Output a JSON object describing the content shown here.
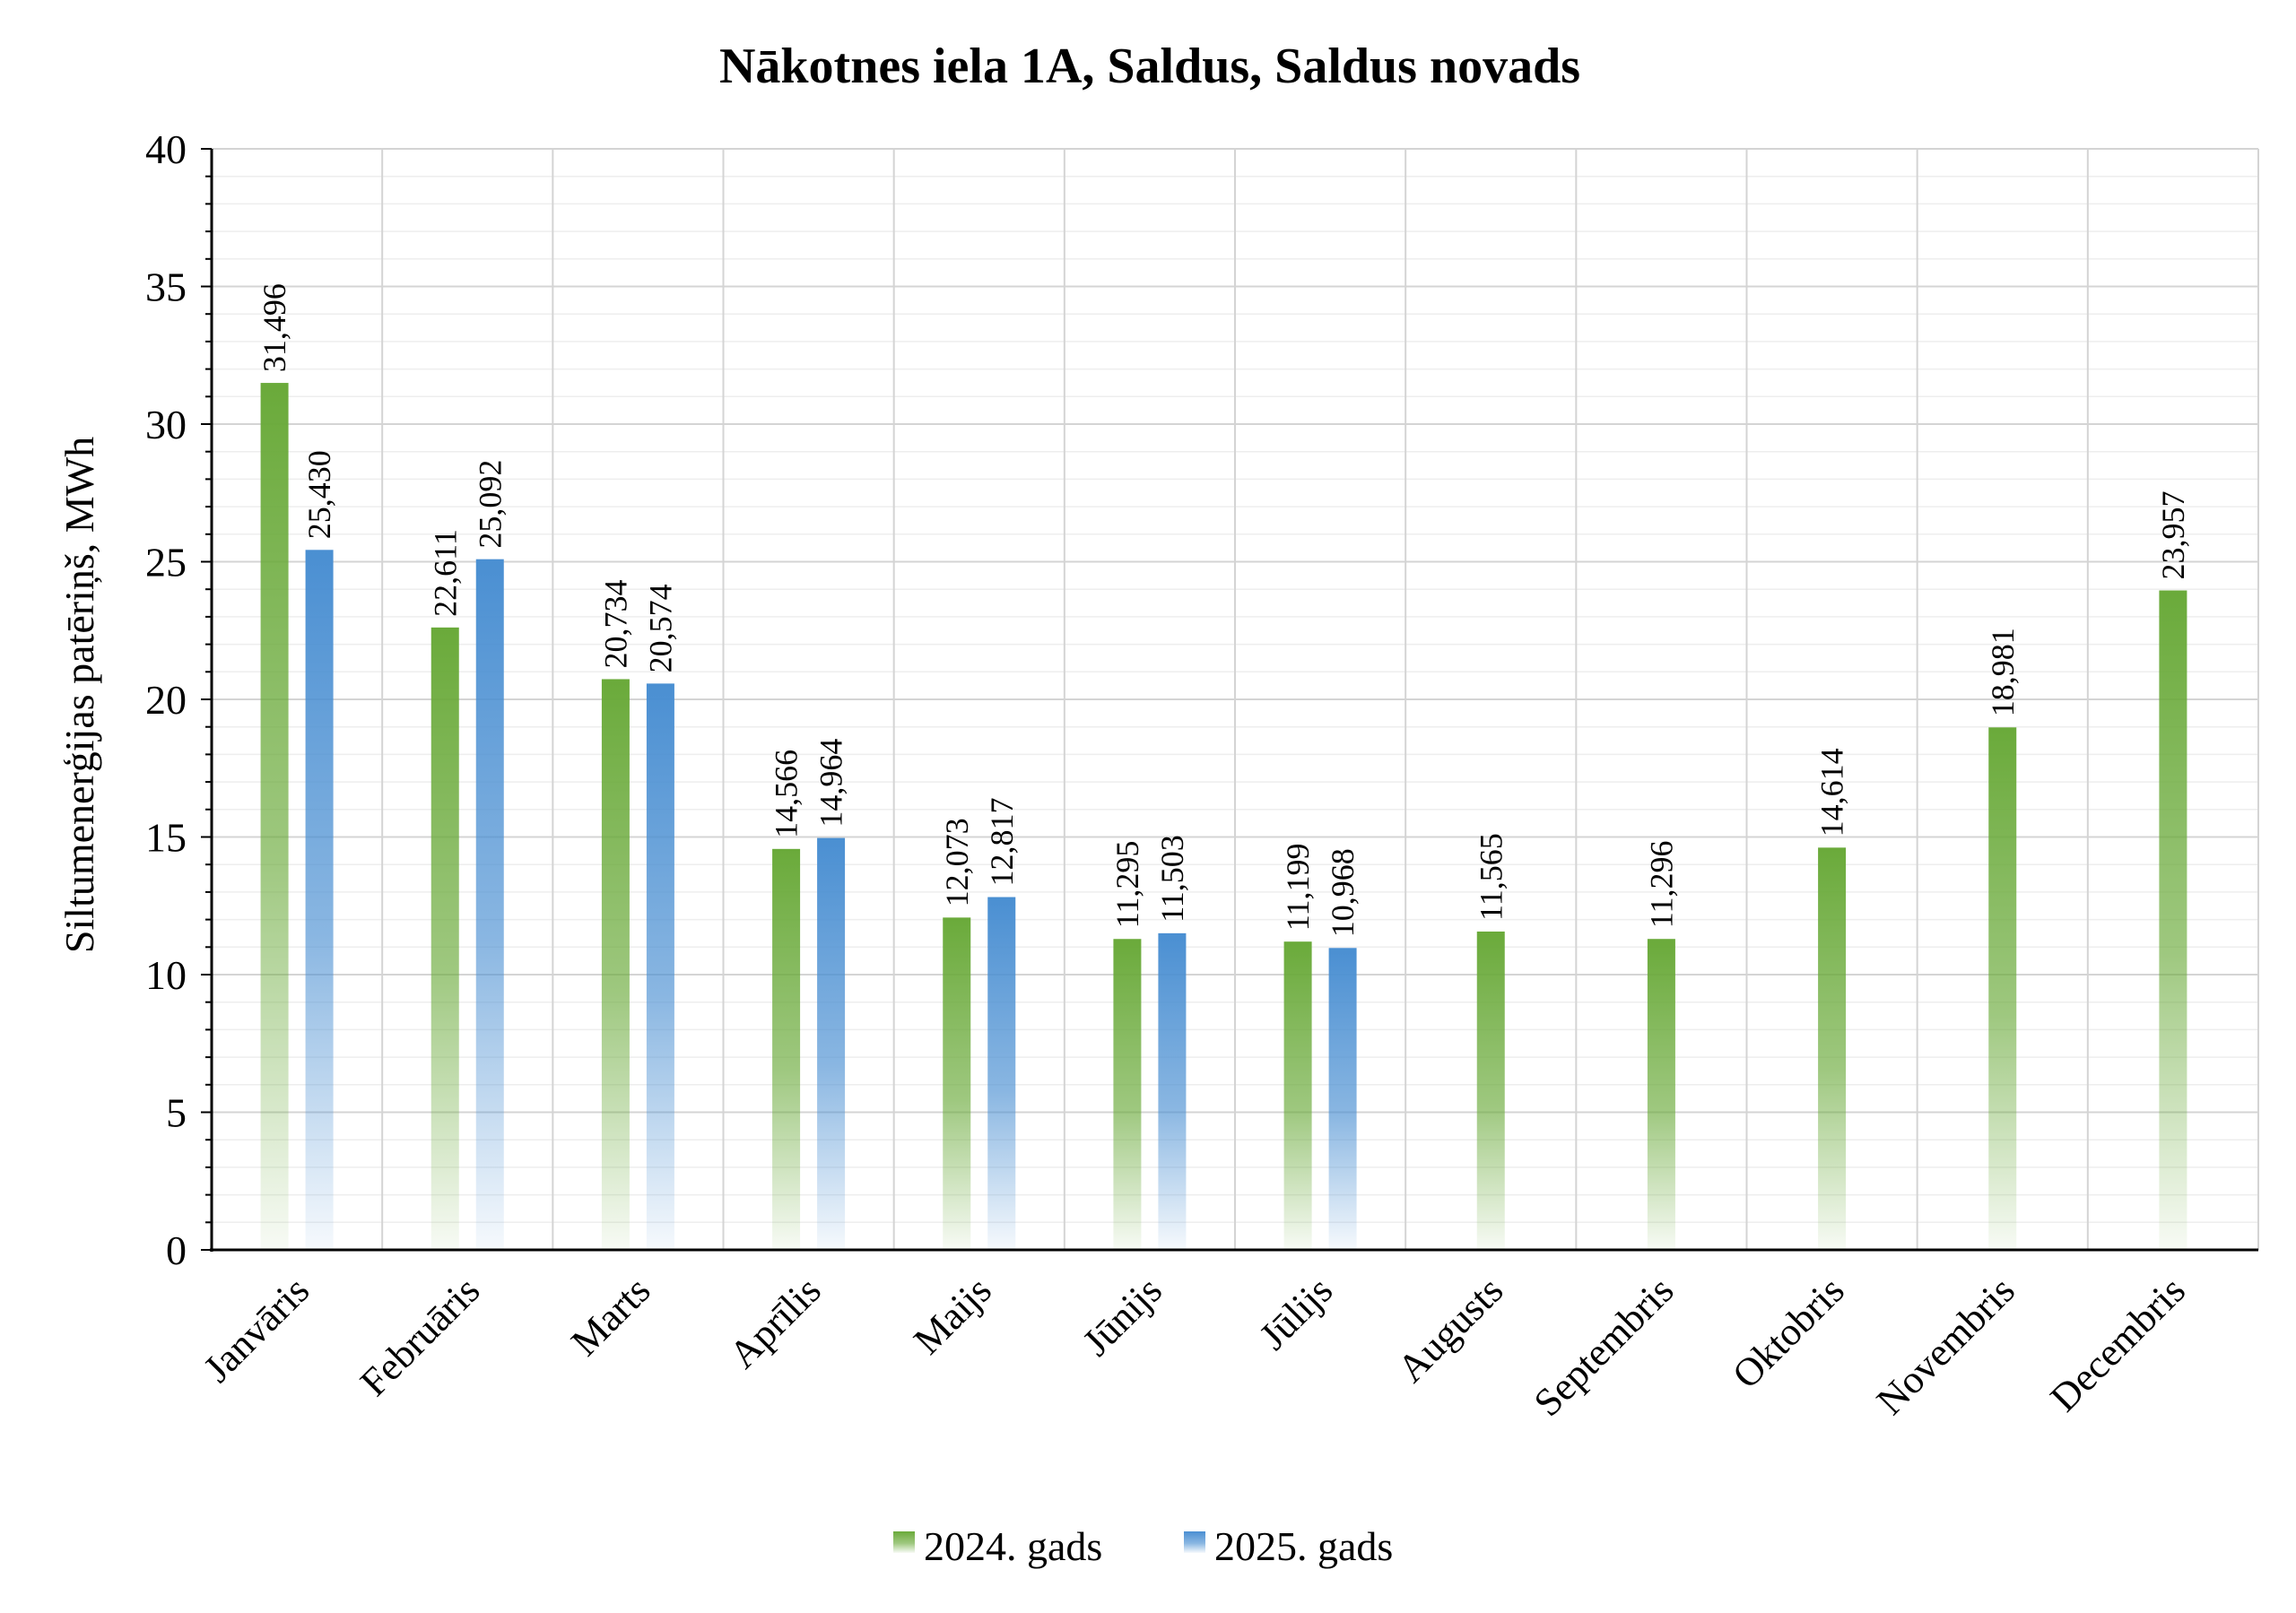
{
  "chart_data": {
    "type": "bar",
    "title": "Nākotnes iela 1A, Saldus, Saldus novads",
    "xlabel": "",
    "ylabel": "Siltumenerģijas patēriņš, MWh",
    "ylim": [
      0,
      40
    ],
    "yticks": [
      "0",
      "5",
      "10",
      "15",
      "20",
      "25",
      "30",
      "35",
      "40"
    ],
    "grid": true,
    "legend_position": "bottom",
    "categories": [
      "Janvāris",
      "Februāris",
      "Marts",
      "Aprīlis",
      "Maijs",
      "Jūnijs",
      "Jūlijs",
      "Augusts",
      "Septembris",
      "Oktobris",
      "Novembris",
      "Decembris"
    ],
    "series": [
      {
        "name": "2024. gads",
        "color": "#6aaa3a",
        "values": [
          31.496,
          22.611,
          20.734,
          14.566,
          12.073,
          11.295,
          11.199,
          11.565,
          11.296,
          14.614,
          18.981,
          23.957
        ],
        "labels": [
          "31,496",
          "22,611",
          "20,734",
          "14,566",
          "12,073",
          "11,295",
          "11,199",
          "11,565",
          "11,296",
          "14,614",
          "18,981",
          "23,957"
        ]
      },
      {
        "name": "2025. gads",
        "color": "#4a8fd2",
        "values": [
          25.43,
          25.092,
          20.574,
          14.964,
          12.817,
          11.503,
          10.968,
          null,
          null,
          null,
          null,
          null
        ],
        "labels": [
          "25,430",
          "25,092",
          "20,574",
          "14,964",
          "12,817",
          "11,503",
          "10,968",
          null,
          null,
          null,
          null,
          null
        ]
      }
    ]
  }
}
